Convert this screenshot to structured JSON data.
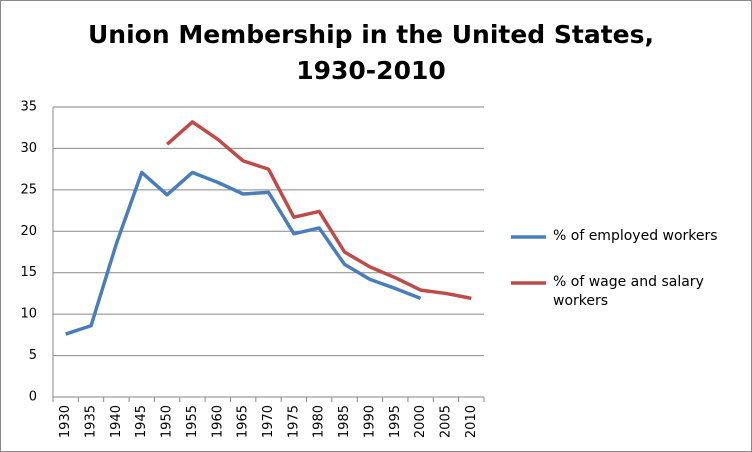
{
  "chart_data": {
    "type": "line",
    "title": "Union Membership in the United States, 1930-2010",
    "categories": [
      "1930",
      "1935",
      "1940",
      "1945",
      "1950",
      "1955",
      "1960",
      "1965",
      "1970",
      "1975",
      "1980",
      "1985",
      "1990",
      "1995",
      "2000",
      "2005",
      "2010"
    ],
    "series": [
      {
        "name": "% of employed workers",
        "color": "#4a7ebb",
        "values": [
          7.6,
          8.6,
          18.5,
          27.1,
          24.4,
          27.1,
          25.9,
          24.5,
          24.7,
          19.7,
          20.4,
          16.0,
          14.2,
          13.1,
          11.9,
          null,
          null
        ]
      },
      {
        "name": "% of wage and salary workers",
        "color": "#be4b48",
        "values": [
          null,
          null,
          null,
          null,
          30.5,
          33.2,
          31.1,
          28.5,
          27.5,
          21.7,
          22.4,
          17.5,
          15.7,
          14.4,
          12.9,
          12.5,
          11.9
        ]
      }
    ],
    "ylim": [
      0,
      35
    ],
    "yticks": [
      0,
      5,
      10,
      15,
      20,
      25,
      30,
      35
    ],
    "grid": true,
    "legend": "right"
  }
}
